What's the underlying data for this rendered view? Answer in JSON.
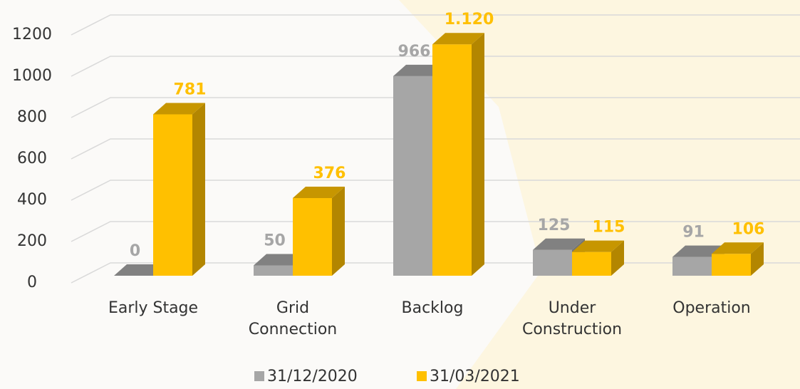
{
  "chart_data": {
    "type": "bar3d",
    "categories": [
      "Early Stage",
      "Grid Connection",
      "Backlog",
      "Under Construction",
      "Operation"
    ],
    "series": [
      {
        "name": "31/12/2020",
        "color": "#a6a6a6",
        "values": [
          0,
          50,
          966,
          125,
          91
        ]
      },
      {
        "name": "31/03/2021",
        "color": "#ffc000",
        "values": [
          781,
          376,
          1120,
          115,
          106
        ],
        "value_labels": [
          "781",
          "376",
          "1.120",
          "115",
          "106"
        ]
      }
    ],
    "ylim": [
      0,
      1200
    ],
    "yticks": [
      0,
      200,
      400,
      600,
      800,
      1000,
      1200
    ],
    "grid": true,
    "legend": "bottom"
  }
}
